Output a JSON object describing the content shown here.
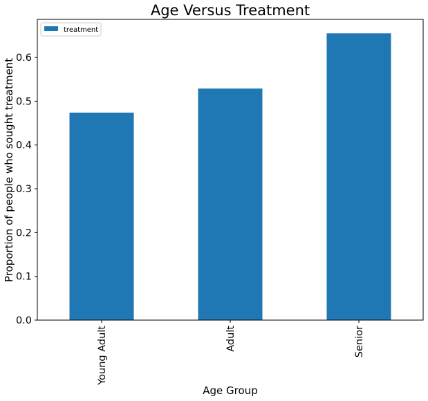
{
  "chart_data": {
    "type": "bar",
    "title": "Age Versus Treatment",
    "xlabel": "Age Group",
    "ylabel": "Proportion of people who sought treatment",
    "categories": [
      "Young Adult",
      "Adult",
      "Senior"
    ],
    "series": [
      {
        "name": "treatment",
        "values": [
          0.474,
          0.529,
          0.655
        ],
        "color": "#1f77b4"
      }
    ],
    "ylim": [
      0,
      0.687
    ],
    "yticks": [
      "0.0",
      "0.1",
      "0.2",
      "0.3",
      "0.4",
      "0.5",
      "0.6"
    ],
    "legend": "top-left",
    "grid": false
  }
}
